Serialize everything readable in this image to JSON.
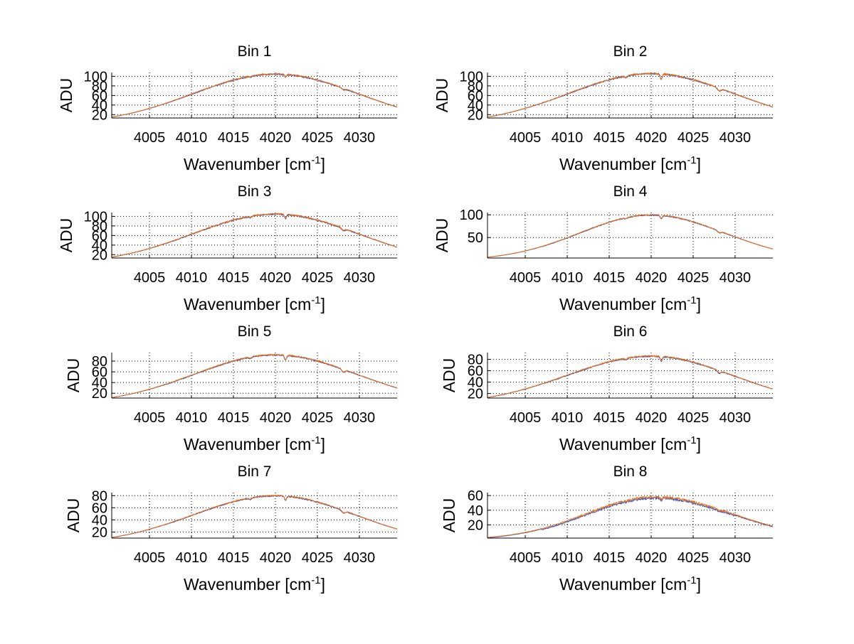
{
  "colors": {
    "background": "#ffffff",
    "axes": "#000000",
    "grid": "#000000",
    "trace_main": "#ea6a14",
    "trace_alt": "#2a56c8"
  },
  "chart_data": [
    {
      "type": "line",
      "title": "Bin 1",
      "xlabel": "Wavenumber [cm",
      "xlabel_sup": "-1",
      "xlabel_end": "]",
      "ylabel": "ADU",
      "xlim": [
        4000.5,
        4034.5
      ],
      "ylim": [
        13,
        108
      ],
      "xticks": [
        4005,
        4010,
        4015,
        4020,
        4025,
        4030
      ],
      "yticks": [
        20,
        40,
        60,
        80,
        100
      ],
      "grid": true,
      "profile": {
        "center": 4020.0,
        "peak": 105,
        "start": 15,
        "end": 36,
        "dip_depth": 5,
        "noise": 1.4,
        "alt_offset": 0.6
      }
    },
    {
      "type": "line",
      "title": "Bin 2",
      "xlabel": "Wavenumber [cm",
      "xlabel_sup": "-1",
      "xlabel_end": "]",
      "ylabel": "ADU",
      "xlim": [
        4000.5,
        4034.5
      ],
      "ylim": [
        13,
        108
      ],
      "xticks": [
        4005,
        4010,
        4015,
        4020,
        4025,
        4030
      ],
      "yticks": [
        20,
        40,
        60,
        80,
        100
      ],
      "grid": true,
      "profile": {
        "center": 4020.0,
        "peak": 106,
        "start": 15,
        "end": 36,
        "dip_depth": 11,
        "noise": 1.5,
        "alt_offset": 0.6
      }
    },
    {
      "type": "line",
      "title": "Bin 3",
      "xlabel": "Wavenumber [cm",
      "xlabel_sup": "-1",
      "xlabel_end": "]",
      "ylabel": "ADU",
      "xlim": [
        4000.5,
        4034.5
      ],
      "ylim": [
        13,
        108
      ],
      "xticks": [
        4005,
        4010,
        4015,
        4020,
        4025,
        4030
      ],
      "yticks": [
        20,
        40,
        60,
        80,
        100
      ],
      "grid": true,
      "profile": {
        "center": 4020.0,
        "peak": 105,
        "start": 15,
        "end": 36,
        "dip_depth": 8,
        "noise": 1.5,
        "alt_offset": 0.6
      }
    },
    {
      "type": "line",
      "title": "Bin 4",
      "xlabel": "Wavenumber [cm",
      "xlabel_sup": "-1",
      "xlabel_end": "]",
      "ylabel": "ADU",
      "xlim": [
        4000.5,
        4034.5
      ],
      "ylim": [
        5,
        105
      ],
      "xticks": [
        4005,
        4010,
        4015,
        4020,
        4025,
        4030
      ],
      "yticks": [
        50,
        100
      ],
      "grid": true,
      "profile": {
        "center": 4020.0,
        "peak": 100,
        "start": 7,
        "end": 25,
        "dip_depth": 7,
        "noise": 1.2,
        "alt_offset": 0.6
      }
    },
    {
      "type": "line",
      "title": "Bin 5",
      "xlabel": "Wavenumber [cm",
      "xlabel_sup": "-1",
      "xlabel_end": "]",
      "ylabel": "ADU",
      "xlim": [
        4000.5,
        4034.5
      ],
      "ylim": [
        11,
        96
      ],
      "xticks": [
        4005,
        4010,
        4015,
        4020,
        4025,
        4030
      ],
      "yticks": [
        20,
        40,
        60,
        80
      ],
      "grid": true,
      "profile": {
        "center": 4020.0,
        "peak": 92,
        "start": 12,
        "end": 30,
        "dip_depth": 9,
        "noise": 1.2,
        "alt_offset": 0.6
      }
    },
    {
      "type": "line",
      "title": "Bin 6",
      "xlabel": "Wavenumber [cm",
      "xlabel_sup": "-1",
      "xlabel_end": "]",
      "ylabel": "ADU",
      "xlim": [
        4000.5,
        4034.5
      ],
      "ylim": [
        12,
        92
      ],
      "xticks": [
        4005,
        4010,
        4015,
        4020,
        4025,
        4030
      ],
      "yticks": [
        20,
        40,
        60,
        80
      ],
      "grid": true,
      "profile": {
        "center": 4020.0,
        "peak": 86,
        "start": 13,
        "end": 28,
        "dip_depth": 8,
        "noise": 1.2,
        "alt_offset": 0.6
      }
    },
    {
      "type": "line",
      "title": "Bin 7",
      "xlabel": "Wavenumber [cm",
      "xlabel_sup": "-1",
      "xlabel_end": "]",
      "ylabel": "ADU",
      "xlim": [
        4000.5,
        4034.5
      ],
      "ylim": [
        10,
        85
      ],
      "xticks": [
        4005,
        4010,
        4015,
        4020,
        4025,
        4030
      ],
      "yticks": [
        20,
        40,
        60,
        80
      ],
      "grid": true,
      "profile": {
        "center": 4020.0,
        "peak": 80,
        "start": 11,
        "end": 25,
        "dip_depth": 7,
        "noise": 1.0,
        "alt_offset": 0.5
      }
    },
    {
      "type": "line",
      "title": "Bin 8",
      "xlabel": "Wavenumber [cm",
      "xlabel_sup": "-1",
      "xlabel_end": "]",
      "ylabel": "ADU",
      "xlim": [
        4000.5,
        4034.5
      ],
      "ylim": [
        2,
        64
      ],
      "xticks": [
        4005,
        4010,
        4015,
        4020,
        4025,
        4030
      ],
      "yticks": [
        20,
        40,
        60
      ],
      "grid": true,
      "profile": {
        "center": 4020.5,
        "peak": 58,
        "start": 3,
        "end": 18,
        "dip_depth": 3,
        "noise": 1.6,
        "alt_offset": 1.5
      }
    }
  ]
}
